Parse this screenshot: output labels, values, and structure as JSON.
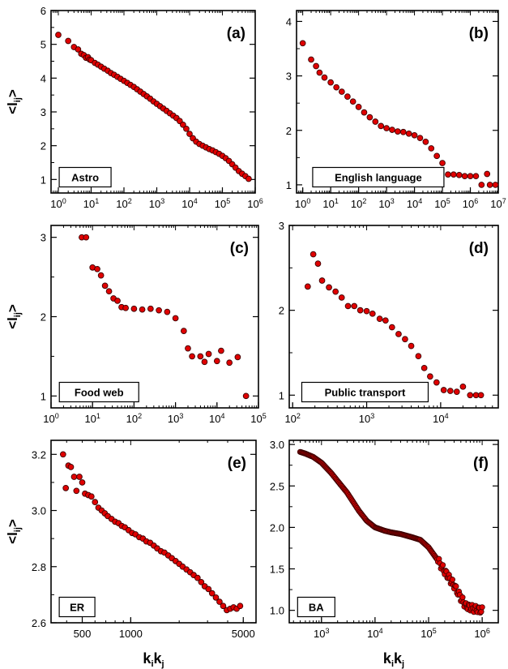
{
  "chart_data": [
    {
      "id": "a",
      "type": "scatter",
      "letter": "(a)",
      "label": "Astro",
      "xscale": "log",
      "xlim": [
        0.6,
        1000000
      ],
      "xticks": [
        1,
        10,
        100,
        1000,
        10000,
        100000,
        1000000
      ],
      "xtick_labels": [
        [
          "10",
          "0"
        ],
        [
          "10",
          "1"
        ],
        [
          "10",
          "2"
        ],
        [
          "10",
          "3"
        ],
        [
          "10",
          "4"
        ],
        [
          "10",
          "5"
        ],
        [
          "10",
          "6"
        ]
      ],
      "ylim": [
        0.6,
        6
      ],
      "yticks": [
        1,
        2,
        3,
        4,
        5,
        6
      ],
      "ytick_labels": [
        "1",
        "2",
        "3",
        "4",
        "5",
        "6"
      ],
      "ylabel": [
        "<l",
        ">",
        "ij"
      ],
      "xlabel": null,
      "points": [
        [
          1,
          5.28
        ],
        [
          2,
          5.1
        ],
        [
          3,
          4.92
        ],
        [
          4,
          4.85
        ],
        [
          5,
          4.72
        ],
        [
          6,
          4.68
        ],
        [
          7,
          4.6
        ],
        [
          8,
          4.62
        ],
        [
          9,
          4.55
        ],
        [
          10,
          4.53
        ],
        [
          13,
          4.45
        ],
        [
          16,
          4.4
        ],
        [
          20,
          4.34
        ],
        [
          25,
          4.28
        ],
        [
          32,
          4.22
        ],
        [
          40,
          4.15
        ],
        [
          50,
          4.1
        ],
        [
          63,
          4.04
        ],
        [
          79,
          3.98
        ],
        [
          100,
          3.92
        ],
        [
          126,
          3.86
        ],
        [
          158,
          3.8
        ],
        [
          200,
          3.74
        ],
        [
          251,
          3.67
        ],
        [
          316,
          3.6
        ],
        [
          398,
          3.53
        ],
        [
          501,
          3.46
        ],
        [
          631,
          3.39
        ],
        [
          794,
          3.31
        ],
        [
          1000,
          3.24
        ],
        [
          1259,
          3.17
        ],
        [
          1585,
          3.1
        ],
        [
          1995,
          3.03
        ],
        [
          2512,
          2.96
        ],
        [
          3162,
          2.89
        ],
        [
          3981,
          2.82
        ],
        [
          5012,
          2.73
        ],
        [
          6310,
          2.62
        ],
        [
          7943,
          2.5
        ],
        [
          10000,
          2.35
        ],
        [
          12589,
          2.22
        ],
        [
          15849,
          2.12
        ],
        [
          19953,
          2.05
        ],
        [
          25119,
          2.0
        ],
        [
          31623,
          1.95
        ],
        [
          39811,
          1.9
        ],
        [
          50119,
          1.86
        ],
        [
          63096,
          1.81
        ],
        [
          79433,
          1.76
        ],
        [
          100000,
          1.7
        ],
        [
          125893,
          1.63
        ],
        [
          158489,
          1.55
        ],
        [
          199526,
          1.45
        ],
        [
          251189,
          1.35
        ],
        [
          316228,
          1.25
        ],
        [
          398107,
          1.17
        ],
        [
          501187,
          1.1
        ],
        [
          630957,
          1.02
        ]
      ]
    },
    {
      "id": "b",
      "type": "scatter",
      "letter": "(b)",
      "label": "English language",
      "xscale": "log",
      "xlim": [
        0.6,
        10000000
      ],
      "xticks": [
        1,
        10,
        100,
        1000,
        10000,
        100000,
        1000000,
        10000000
      ],
      "xtick_labels": [
        [
          "10",
          "0"
        ],
        [
          "10",
          "1"
        ],
        [
          "10",
          "2"
        ],
        [
          "10",
          "3"
        ],
        [
          "10",
          "4"
        ],
        [
          "10",
          "5"
        ],
        [
          "10",
          "6"
        ],
        [
          "10",
          "7"
        ]
      ],
      "ylim": [
        0.85,
        4.2
      ],
      "yticks": [
        1,
        2,
        3,
        4
      ],
      "ytick_labels": [
        "1",
        "2",
        "3",
        "4"
      ],
      "ylabel": null,
      "xlabel": null,
      "points": [
        [
          1,
          3.6
        ],
        [
          2,
          3.3
        ],
        [
          3,
          3.18
        ],
        [
          4,
          3.06
        ],
        [
          6,
          2.97
        ],
        [
          10,
          2.88
        ],
        [
          16,
          2.79
        ],
        [
          25,
          2.71
        ],
        [
          40,
          2.62
        ],
        [
          63,
          2.53
        ],
        [
          100,
          2.43
        ],
        [
          158,
          2.33
        ],
        [
          251,
          2.24
        ],
        [
          398,
          2.16
        ],
        [
          631,
          2.08
        ],
        [
          1000,
          2.04
        ],
        [
          1585,
          2.01
        ],
        [
          2512,
          1.98
        ],
        [
          3981,
          1.97
        ],
        [
          6310,
          1.94
        ],
        [
          10000,
          1.91
        ],
        [
          15849,
          1.86
        ],
        [
          25119,
          1.79
        ],
        [
          39811,
          1.67
        ],
        [
          63096,
          1.53
        ],
        [
          100000,
          1.4
        ],
        [
          158489,
          1.19
        ],
        [
          251189,
          1.19
        ],
        [
          398107,
          1.18
        ],
        [
          630957,
          1.16
        ],
        [
          1000000,
          1.16
        ],
        [
          1584893,
          1.16
        ],
        [
          2511886,
          1.0
        ],
        [
          3981072,
          1.2
        ],
        [
          5011872,
          1.0
        ],
        [
          7943282,
          1.0
        ]
      ]
    },
    {
      "id": "c",
      "type": "scatter",
      "letter": "(c)",
      "label": "Food web",
      "xscale": "log",
      "xlim": [
        1,
        100000
      ],
      "xticks": [
        1,
        10,
        100,
        1000,
        10000,
        100000
      ],
      "xtick_labels": [
        [
          "10",
          "0"
        ],
        [
          "10",
          "1"
        ],
        [
          "10",
          "2"
        ],
        [
          "10",
          "3"
        ],
        [
          "10",
          "4"
        ],
        [
          "10",
          "5"
        ]
      ],
      "ylim": [
        0.85,
        3.15
      ],
      "yticks": [
        1,
        2,
        3
      ],
      "ytick_labels": [
        "1",
        "2",
        "3"
      ],
      "ylabel": [
        "<l",
        ">",
        "ij"
      ],
      "xlabel": null,
      "points": [
        [
          5.5,
          3.0
        ],
        [
          7,
          3.0
        ],
        [
          10,
          2.62
        ],
        [
          13,
          2.6
        ],
        [
          16,
          2.52
        ],
        [
          20,
          2.39
        ],
        [
          25,
          2.32
        ],
        [
          32,
          2.23
        ],
        [
          40,
          2.2
        ],
        [
          50,
          2.12
        ],
        [
          63,
          2.11
        ],
        [
          100,
          2.1
        ],
        [
          158,
          2.09
        ],
        [
          251,
          2.1
        ],
        [
          398,
          2.08
        ],
        [
          631,
          2.06
        ],
        [
          1000,
          1.98
        ],
        [
          1585,
          1.82
        ],
        [
          1995,
          1.6
        ],
        [
          2512,
          1.5
        ],
        [
          3981,
          1.5
        ],
        [
          5012,
          1.43
        ],
        [
          6310,
          1.53
        ],
        [
          10000,
          1.44
        ],
        [
          12589,
          1.57
        ],
        [
          19953,
          1.42
        ],
        [
          31623,
          1.49
        ],
        [
          50119,
          1.0
        ]
      ]
    },
    {
      "id": "d",
      "type": "scatter",
      "letter": "(d)",
      "label": "Public transport",
      "xscale": "log",
      "xlim": [
        90,
        60000
      ],
      "xticks": [
        100,
        1000,
        10000
      ],
      "xtick_labels": [
        [
          "10",
          "2"
        ],
        [
          "10",
          "3"
        ],
        [
          "10",
          "4"
        ]
      ],
      "ylim": [
        0.85,
        3.0
      ],
      "yticks": [
        1,
        2,
        3
      ],
      "ytick_labels": [
        "1",
        "2",
        "3"
      ],
      "ylabel": null,
      "xlabel": null,
      "points": [
        [
          160,
          2.28
        ],
        [
          190,
          2.66
        ],
        [
          220,
          2.55
        ],
        [
          250,
          2.35
        ],
        [
          310,
          2.27
        ],
        [
          380,
          2.22
        ],
        [
          460,
          2.15
        ],
        [
          560,
          2.05
        ],
        [
          680,
          2.05
        ],
        [
          820,
          2.0
        ],
        [
          1000,
          1.99
        ],
        [
          1200,
          1.96
        ],
        [
          1500,
          1.9
        ],
        [
          1800,
          1.88
        ],
        [
          2200,
          1.8
        ],
        [
          2700,
          1.72
        ],
        [
          3300,
          1.66
        ],
        [
          4000,
          1.58
        ],
        [
          5000,
          1.46
        ],
        [
          6000,
          1.32
        ],
        [
          7200,
          1.22
        ],
        [
          8800,
          1.15
        ],
        [
          11000,
          1.06
        ],
        [
          13500,
          1.05
        ],
        [
          16500,
          1.04
        ],
        [
          20000,
          1.1
        ],
        [
          25000,
          1.0
        ],
        [
          30000,
          1.0
        ],
        [
          35000,
          1.0
        ]
      ]
    },
    {
      "id": "e",
      "type": "scatter",
      "letter": "(e)",
      "label": "ER",
      "xscale": "log",
      "xlim": [
        320,
        6000
      ],
      "xticks": [
        500,
        1000,
        5000
      ],
      "xtick_labels": [
        [
          "500",
          ""
        ],
        [
          "1000",
          ""
        ],
        [
          "5000",
          ""
        ]
      ],
      "ylim": [
        2.6,
        3.25
      ],
      "yticks": [
        2.6,
        2.8,
        3.0,
        3.2
      ],
      "ytick_labels": [
        "2.6",
        "2.8",
        "3.0",
        "3.2"
      ],
      "ylabel": [
        "<l",
        ">",
        "ij"
      ],
      "xlabel": [
        "k",
        "i",
        "k",
        "j"
      ],
      "points": [
        [
          380,
          3.2
        ],
        [
          395,
          3.08
        ],
        [
          410,
          3.16
        ],
        [
          425,
          3.155
        ],
        [
          445,
          3.12
        ],
        [
          460,
          3.07
        ],
        [
          480,
          3.12
        ],
        [
          500,
          3.1
        ],
        [
          520,
          3.06
        ],
        [
          545,
          3.055
        ],
        [
          570,
          3.05
        ],
        [
          600,
          3.03
        ],
        [
          630,
          3.01
        ],
        [
          660,
          3.0
        ],
        [
          690,
          2.99
        ],
        [
          720,
          2.98
        ],
        [
          760,
          2.97
        ],
        [
          800,
          2.96
        ],
        [
          840,
          2.955
        ],
        [
          880,
          2.945
        ],
        [
          920,
          2.94
        ],
        [
          970,
          2.93
        ],
        [
          1020,
          2.92
        ],
        [
          1070,
          2.915
        ],
        [
          1130,
          2.905
        ],
        [
          1190,
          2.9
        ],
        [
          1250,
          2.89
        ],
        [
          1320,
          2.885
        ],
        [
          1390,
          2.875
        ],
        [
          1460,
          2.865
        ],
        [
          1540,
          2.855
        ],
        [
          1620,
          2.85
        ],
        [
          1710,
          2.84
        ],
        [
          1800,
          2.83
        ],
        [
          1900,
          2.82
        ],
        [
          2000,
          2.81
        ],
        [
          2100,
          2.8
        ],
        [
          2220,
          2.79
        ],
        [
          2340,
          2.78
        ],
        [
          2460,
          2.77
        ],
        [
          2600,
          2.76
        ],
        [
          2740,
          2.745
        ],
        [
          2880,
          2.73
        ],
        [
          3040,
          2.72
        ],
        [
          3200,
          2.705
        ],
        [
          3380,
          2.69
        ],
        [
          3560,
          2.675
        ],
        [
          3750,
          2.66
        ],
        [
          3950,
          2.645
        ],
        [
          4150,
          2.65
        ],
        [
          4350,
          2.655
        ],
        [
          4550,
          2.65
        ],
        [
          4780,
          2.66
        ]
      ]
    },
    {
      "id": "f",
      "type": "scatter",
      "letter": "(f)",
      "label": "BA",
      "xscale": "log",
      "xlim": [
        250,
        2000000
      ],
      "xticks": [
        1000,
        10000,
        100000,
        1000000
      ],
      "xtick_labels": [
        [
          "10",
          "3"
        ],
        [
          "10",
          "4"
        ],
        [
          "10",
          "5"
        ],
        [
          "10",
          "6"
        ]
      ],
      "ylim": [
        0.85,
        3.05
      ],
      "yticks": [
        1.0,
        1.5,
        2.0,
        2.5,
        3.0
      ],
      "ytick_labels": [
        "1.0",
        "1.5",
        "2.0",
        "2.5",
        "3.0"
      ],
      "ylabel": null,
      "xlabel": [
        "k",
        "i",
        "k",
        "j"
      ],
      "curve": [
        [
          400,
          2.91
        ],
        [
          500,
          2.89
        ],
        [
          700,
          2.85
        ],
        [
          1000,
          2.78
        ],
        [
          1500,
          2.66
        ],
        [
          2000,
          2.56
        ],
        [
          3000,
          2.42
        ],
        [
          5000,
          2.2
        ],
        [
          7000,
          2.08
        ],
        [
          10000,
          2.0
        ],
        [
          15000,
          1.96
        ],
        [
          20000,
          1.94
        ],
        [
          30000,
          1.92
        ],
        [
          50000,
          1.88
        ],
        [
          70000,
          1.85
        ],
        [
          100000,
          1.76
        ],
        [
          150000,
          1.6
        ],
        [
          200000,
          1.47
        ],
        [
          300000,
          1.3
        ],
        [
          400000,
          1.15
        ],
        [
          500000,
          1.05
        ],
        [
          700000,
          1.02
        ],
        [
          1000000,
          1.0
        ]
      ]
    }
  ],
  "colors": {
    "marker_fill": "#e00000",
    "marker_edge": "#3a0000",
    "axis": "#000000"
  }
}
